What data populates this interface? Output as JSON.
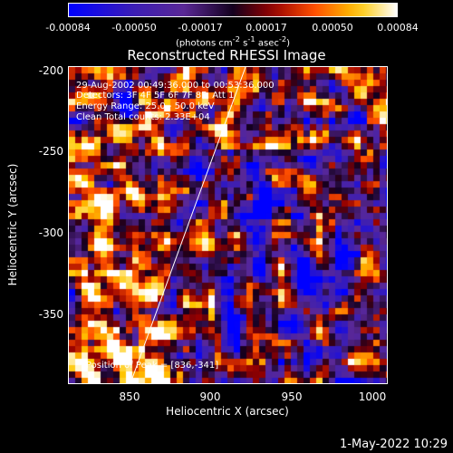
{
  "colorbar": {
    "ticks": [
      "-0.00084",
      "-0.00050",
      "-0.00017",
      "0.00017",
      "0.00050",
      "0.00084"
    ],
    "units_text": "(photons cm",
    "units_sup1": "-2",
    "units_mid": " s",
    "units_sup2": "-1",
    "units_end": " asec",
    "units_sup3": "-2",
    "units_close": ")"
  },
  "plot": {
    "title": "Reconstructed RHESSI Image",
    "annotations": {
      "time": "29-Aug-2002 00:49:36.000 to 00:53:36.000",
      "detectors": "Detectors: 3F 4F 5F 6F 7F 8F, Att 1",
      "energy": "Energy Range: 25.0 - 50.0 keV",
      "clean": "Clean     Total counts: 2.33E+04",
      "peak": "Position of Peak = [836,-341]"
    },
    "xlabel": "Heliocentric X (arcsec)",
    "ylabel": "Heliocentric Y (arcsec)",
    "xticks": [
      "850",
      "900",
      "950",
      "1000"
    ],
    "yticks": [
      "-200",
      "-250",
      "-300",
      "-350"
    ]
  },
  "footer": {
    "timestamp": "1-May-2022 10:29"
  },
  "colors": {
    "background": "#000000",
    "foreground": "#ffffff"
  }
}
